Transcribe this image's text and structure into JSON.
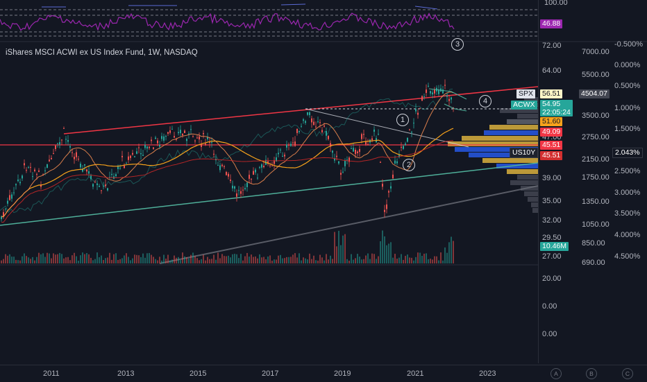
{
  "chart": {
    "title": "iShares MSCI ACWI ex US Index Fund, 1W, NASDAQ"
  },
  "rsi": {
    "ticks": [
      "100.00"
    ],
    "value_badge": "46.88"
  },
  "price_scale_left": {
    "ticks": [
      "72.00",
      "64.00",
      "47.00",
      "39.00",
      "35.00",
      "32.00",
      "29.50",
      "27.00"
    ]
  },
  "price_scale_mid": {
    "ticks": [
      "7000.00",
      "5500.00",
      "3500.00",
      "2750.00",
      "2150.00",
      "1750.00",
      "1350.00",
      "1050.00",
      "850.00",
      "690.00"
    ]
  },
  "price_scale_right": {
    "ticks": [
      "-0.500%",
      "0.000%",
      "0.500%",
      "1.000%",
      "1.500%",
      "2.500%",
      "3.000%",
      "3.500%",
      "4.000%",
      "4.500%"
    ]
  },
  "lower_pane": {
    "ticks": [
      "20.00",
      "0.00",
      "0.00"
    ]
  },
  "badges": {
    "spx_label": "SPX",
    "spx_value": "56.51",
    "spx_price": "4504.07",
    "acwx_label": "ACWX",
    "acwx_value": "54.95",
    "countdown": "22:05:24",
    "ma1": "51.60",
    "ma2": "49.09",
    "ma3": "45.51",
    "ma4": "45.51",
    "us10y_label": "US10Y",
    "us10y_value": "2.043%",
    "volume": "10.46M"
  },
  "annotations": [
    "1",
    "2",
    "3",
    "4"
  ],
  "timeline": {
    "years": [
      "2011",
      "2013",
      "2015",
      "2017",
      "2019",
      "2021",
      "2023"
    ]
  },
  "scale_buttons": {
    "auto": "A",
    "b": "B",
    "c": "C"
  },
  "colors": {
    "background": "#131722",
    "candle_up": "#26a69a",
    "candle_down": "#ef5350",
    "rsi_line": "#9c27b0",
    "ma_orange": "#f7a21b",
    "ma_red": "#f23645",
    "trend_green": "#4fb09a",
    "vp_yellow": "#f5c542",
    "vp_blue": "#2962ff"
  }
}
